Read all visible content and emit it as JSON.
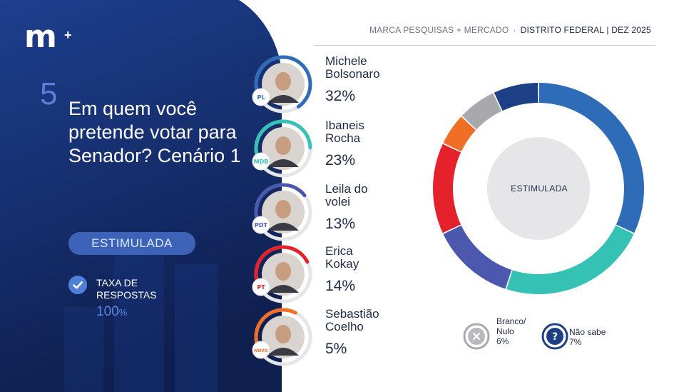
{
  "header": {
    "logo": "m",
    "logo_plus": "+",
    "source": "MARCA PESQUISAS + MERCADO",
    "separator": "·",
    "region": "DISTRITO FEDERAL |  DEZ 2025"
  },
  "question": {
    "number": "5",
    "text": "Em quem você pretende votar para Senador? Cenário 1",
    "badge": "ESTIMULADA",
    "rate_label": "TAXA DE RESPOSTAS",
    "rate_value": "100",
    "rate_unit": "%"
  },
  "colors": {
    "left_bg_top": "#1d3f8f",
    "left_bg_bottom": "#0f1f4f",
    "michele": "#2f6cb7",
    "ibaneis": "#35c1b4",
    "leila": "#4b58ad",
    "erica": "#e5222c",
    "sebastiao": "#ef6f26",
    "branco": "#a7a9ad",
    "nao_sabe": "#1c3f86",
    "center": "#e6e6e8"
  },
  "candidates": [
    {
      "name_line1": "Michele",
      "name_line2": "Bolsonaro",
      "pct": "32%",
      "party": "PL",
      "icon": "party-pl-icon"
    },
    {
      "name_line1": "Ibaneis",
      "name_line2": "Rocha",
      "pct": "23%",
      "party": "MDB",
      "icon": "party-mdb-icon"
    },
    {
      "name_line1": "Leila do",
      "name_line2": "volei",
      "pct": "13%",
      "party": "PDT",
      "icon": "party-pdt-icon"
    },
    {
      "name_line1": "Erica",
      "name_line2": "Kokay",
      "pct": "14%",
      "party": "PT",
      "icon": "party-pt-icon"
    },
    {
      "name_line1": "Sebastião",
      "name_line2": "Coelho",
      "pct": "5%",
      "party": "NOVO",
      "icon": "party-novo-icon"
    }
  ],
  "legend": {
    "branco_line1": "Branco/",
    "branco_line2": "Nulo",
    "branco_pct": "6%",
    "branco_icon": "x-icon",
    "nao_sabe_line1": "Não sabe",
    "nao_sabe_pct": "7%",
    "nao_sabe_icon": "question-icon"
  },
  "chart_data": {
    "type": "pie",
    "style": "donut",
    "title": "",
    "center_label": "ESTIMULADA",
    "categories": [
      "Michele Bolsonaro",
      "Ibaneis Rocha",
      "Leila do volei",
      "Erica Kokay",
      "Sebastião Coelho",
      "Branco/Nulo",
      "Não sabe"
    ],
    "values": [
      32,
      23,
      13,
      14,
      5,
      6,
      7
    ],
    "unit": "%",
    "colors": [
      "#2f6cb7",
      "#35c1b4",
      "#4b58ad",
      "#e5222c",
      "#ef6f26",
      "#a7a9ad",
      "#1c3f86"
    ],
    "start": "top",
    "direction": "clockwise"
  }
}
